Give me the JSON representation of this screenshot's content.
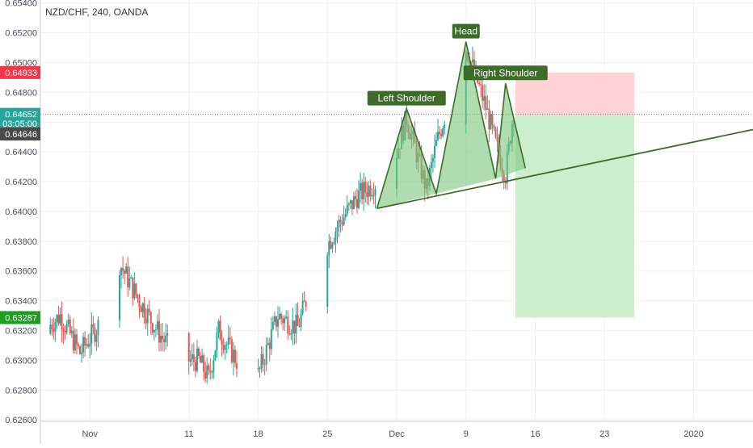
{
  "ticker": "NZD/CHF, 240, OANDA",
  "colors": {
    "up": "#26a69a",
    "down": "#ef5350",
    "pattern_fill": "#7bc67b",
    "pattern_line": "#3d6b2a",
    "label_bg": "#3d6b2a",
    "stop_zone": "#ffcdd2",
    "target_zone": "#c8ecc8",
    "grid": "#eef0f3",
    "axis_text": "#4a4f59"
  },
  "chart_data": {
    "type": "candlestick",
    "title": "NZD/CHF, 240, OANDA",
    "xlabel": "",
    "ylabel": "",
    "grid": true,
    "ylim": [
      0.6259,
      0.6542
    ],
    "y_ticks": [
      0.654,
      0.652,
      0.65,
      0.648,
      0.646,
      0.644,
      0.642,
      0.64,
      0.638,
      0.636,
      0.634,
      0.632,
      0.63,
      0.628,
      0.626
    ],
    "y_tick_labels": [
      "0.65400",
      "0.65200",
      "0.65000",
      "0.64800",
      "0.64600",
      "0.64400",
      "0.64200",
      "0.64000",
      "0.63800",
      "0.63600",
      "0.63400",
      "0.63200",
      "0.63000",
      "0.62800",
      "0.62600"
    ],
    "x_ticks": [
      {
        "label": "Nov",
        "date": "2019-11-01"
      },
      {
        "label": "11",
        "date": "2019-11-11"
      },
      {
        "label": "18",
        "date": "2019-11-18"
      },
      {
        "label": "25",
        "date": "2019-11-25"
      },
      {
        "label": "Dec",
        "date": "2019-12-02"
      },
      {
        "label": "9",
        "date": "2019-12-09"
      },
      {
        "label": "16",
        "date": "2019-12-16"
      },
      {
        "label": "23",
        "date": "2019-12-23"
      },
      {
        "label": "2020",
        "date": "2020-01-01"
      }
    ],
    "date_range": [
      "2019-10-27",
      "2020-01-07"
    ],
    "price_path": [
      {
        "date": "2019-10-27",
        "price": 0.6318
      },
      {
        "date": "2019-10-29",
        "price": 0.633
      },
      {
        "date": "2019-10-31",
        "price": 0.6305
      },
      {
        "date": "2019-11-02",
        "price": 0.6325
      },
      {
        "date": "2019-11-04",
        "price": 0.6365
      },
      {
        "date": "2019-11-06",
        "price": 0.634
      },
      {
        "date": "2019-11-08",
        "price": 0.6318
      },
      {
        "date": "2019-11-10",
        "price": 0.63
      },
      {
        "date": "2019-11-12",
        "price": 0.63
      },
      {
        "date": "2019-11-13",
        "price": 0.6288
      },
      {
        "date": "2019-11-14",
        "price": 0.632
      },
      {
        "date": "2019-11-16",
        "price": 0.6298
      },
      {
        "date": "2019-11-18",
        "price": 0.629
      },
      {
        "date": "2019-11-20",
        "price": 0.633
      },
      {
        "date": "2019-11-22",
        "price": 0.6322
      },
      {
        "date": "2019-11-24",
        "price": 0.6365
      },
      {
        "date": "2019-11-26",
        "price": 0.639
      },
      {
        "date": "2019-11-28",
        "price": 0.641
      },
      {
        "date": "2019-11-30",
        "price": 0.642
      },
      {
        "date": "2019-12-02",
        "price": 0.644
      },
      {
        "date": "2019-12-03",
        "price": 0.6463
      },
      {
        "date": "2019-12-05",
        "price": 0.6415
      },
      {
        "date": "2019-12-06",
        "price": 0.6445
      },
      {
        "date": "2019-12-08",
        "price": 0.649
      },
      {
        "date": "2019-12-09",
        "price": 0.651
      },
      {
        "date": "2019-12-11",
        "price": 0.647
      },
      {
        "date": "2019-12-12",
        "price": 0.6445
      },
      {
        "date": "2019-12-13",
        "price": 0.6425
      },
      {
        "date": "2019-12-14",
        "price": 0.6478
      },
      {
        "date": "2019-12-15",
        "price": 0.6462
      }
    ],
    "pattern": {
      "name": "Head and Shoulders",
      "labels": [
        "Left Shoulder",
        "Head",
        "Right Shoulder"
      ],
      "points": [
        {
          "date": "2019-11-30",
          "price": 0.6402
        },
        {
          "date": "2019-12-03",
          "price": 0.6469
        },
        {
          "date": "2019-12-06",
          "price": 0.6412
        },
        {
          "date": "2019-12-09",
          "price": 0.6514
        },
        {
          "date": "2019-12-12",
          "price": 0.6422
        },
        {
          "date": "2019-12-13",
          "price": 0.6486
        },
        {
          "date": "2019-12-15",
          "price": 0.6429
        }
      ],
      "neckline": [
        {
          "date": "2019-11-30",
          "price": 0.6402
        },
        {
          "date": "2020-01-07",
          "price": 0.6455
        }
      ]
    },
    "position": {
      "entry_price": 0.64646,
      "stop_price": 0.64933,
      "target_price": 0.63287,
      "start_date": "2019-12-14",
      "end_date": "2019-12-26"
    },
    "price_labels": [
      {
        "text": "0.64933",
        "price": 0.64933,
        "color": "#f23645"
      },
      {
        "text": "0.64652",
        "price": 0.64652,
        "color": "#26a69a"
      },
      {
        "text": "03:05:00",
        "price": 0.6459,
        "color": "#26a69a"
      },
      {
        "text": "0.64646",
        "price": 0.6452,
        "color": "#4a4a4a"
      },
      {
        "text": "0.63287",
        "price": 0.63287,
        "color": "#1e9e1e"
      }
    ]
  }
}
